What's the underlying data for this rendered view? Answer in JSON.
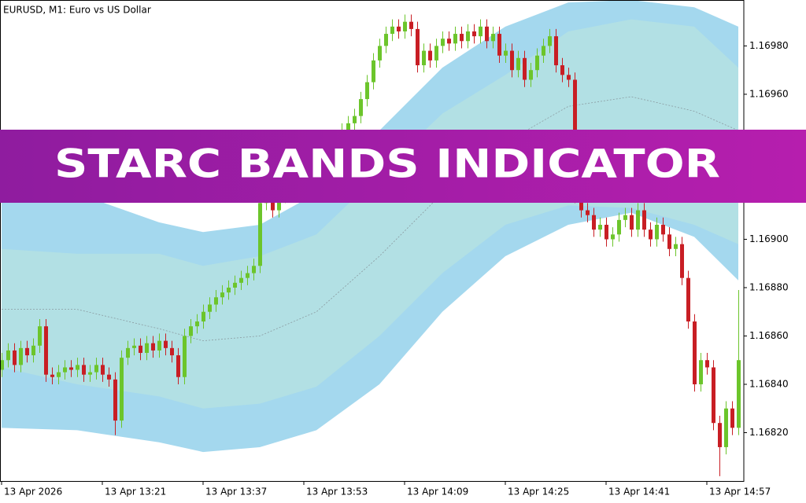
{
  "chart_data": {
    "type": "candlestick",
    "title": "EURUSD, M1:  Euro vs US Dollar",
    "banner": "STARC BANDS INDICATOR",
    "bull_color": "#6cc52b",
    "bear_color": "#c81e24",
    "ylim": [
      1.168,
      1.16999
    ],
    "yticks": [
      {
        "value": 1.1698,
        "label": "1.16980"
      },
      {
        "value": 1.1696,
        "label": "1.16960"
      },
      {
        "value": 1.169,
        "label": "1.16900"
      },
      {
        "value": 1.1688,
        "label": "1.16880"
      },
      {
        "value": 1.1686,
        "label": "1.16860"
      },
      {
        "value": 1.1684,
        "label": "1.16840"
      },
      {
        "value": 1.1682,
        "label": "1.16820"
      }
    ],
    "xlim": [
      -0.25,
      117.875
    ],
    "xticks": [
      {
        "value": 0,
        "label": "13 Apr 2026"
      },
      {
        "value": 16,
        "label": "13 Apr 13:21"
      },
      {
        "value": 32,
        "label": "13 Apr 13:37"
      },
      {
        "value": 48,
        "label": "13 Apr 13:53"
      },
      {
        "value": 64,
        "label": "13 Apr 14:09"
      },
      {
        "value": 80,
        "label": "13 Apr 14:25"
      },
      {
        "value": 96,
        "label": "13 Apr 14:41"
      },
      {
        "value": 112,
        "label": "13 Apr 14:57"
      }
    ],
    "band_x": [
      0,
      12,
      25,
      32,
      41,
      50,
      60,
      70,
      80,
      90,
      100,
      110,
      117
    ],
    "bands": [
      {
        "color": "#a4d8ee",
        "values": [
          1.1692,
          1.16919,
          1.16907,
          1.16903,
          1.16906,
          1.16919,
          1.16945,
          1.16971,
          1.16988,
          1.16998,
          1.16999,
          1.16996,
          1.16988
        ]
      },
      {
        "color": "#b2e0e4",
        "values": [
          1.16896,
          1.16894,
          1.16894,
          1.16889,
          1.16893,
          1.16902,
          1.16927,
          1.16952,
          1.16968,
          1.16986,
          1.16991,
          1.16988,
          1.16971
        ]
      },
      {
        "color": "#8a9aa0",
        "values": [
          1.16871,
          1.16871,
          1.16863,
          1.16858,
          1.1686,
          1.1687,
          1.16893,
          1.16919,
          1.1694,
          1.16955,
          1.16959,
          1.16953,
          1.16945
        ]
      },
      {
        "color": "#b2e0e4",
        "values": [
          1.16847,
          1.1684,
          1.16835,
          1.1683,
          1.16832,
          1.16839,
          1.1686,
          1.16886,
          1.16906,
          1.16914,
          1.16913,
          1.16906,
          1.16898
        ]
      },
      {
        "color": "#a4d8ee",
        "values": [
          1.16822,
          1.16821,
          1.16816,
          1.16812,
          1.16814,
          1.16821,
          1.1684,
          1.1687,
          1.16893,
          1.16906,
          1.16911,
          1.16901,
          1.16883
        ]
      }
    ],
    "candles": [
      [
        1.16846,
        1.16853,
        1.16843,
        1.1685
      ],
      [
        1.1685,
        1.16857,
        1.16847,
        1.16854
      ],
      [
        1.16854,
        1.16857,
        1.16845,
        1.16848
      ],
      [
        1.16848,
        1.16858,
        1.16845,
        1.16855
      ],
      [
        1.16855,
        1.16858,
        1.16849,
        1.16852
      ],
      [
        1.16852,
        1.16859,
        1.16849,
        1.16856
      ],
      [
        1.16856,
        1.16867,
        1.16853,
        1.16864
      ],
      [
        1.16864,
        1.16867,
        1.16841,
        1.16844
      ],
      [
        1.16844,
        1.16847,
        1.1684,
        1.16843
      ],
      [
        1.16843,
        1.16848,
        1.1684,
        1.16845
      ],
      [
        1.16845,
        1.1685,
        1.16842,
        1.16847
      ],
      [
        1.16847,
        1.1685,
        1.16843,
        1.16846
      ],
      [
        1.16846,
        1.16851,
        1.16843,
        1.16848
      ],
      [
        1.16848,
        1.16851,
        1.16841,
        1.16844
      ],
      [
        1.16844,
        1.16848,
        1.16841,
        1.16845
      ],
      [
        1.16845,
        1.16851,
        1.16842,
        1.16848
      ],
      [
        1.16848,
        1.16851,
        1.16841,
        1.16844
      ],
      [
        1.16844,
        1.16847,
        1.16839,
        1.16842
      ],
      [
        1.16842,
        1.16845,
        1.16819,
        1.16825
      ],
      [
        1.16825,
        1.16854,
        1.16822,
        1.16851
      ],
      [
        1.16851,
        1.16858,
        1.16848,
        1.16855
      ],
      [
        1.16855,
        1.16859,
        1.16852,
        1.16856
      ],
      [
        1.16856,
        1.16859,
        1.1685,
        1.16853
      ],
      [
        1.16853,
        1.1686,
        1.1685,
        1.16857
      ],
      [
        1.16857,
        1.1686,
        1.16851,
        1.16854
      ],
      [
        1.16854,
        1.16861,
        1.16851,
        1.16858
      ],
      [
        1.16858,
        1.16861,
        1.16852,
        1.16855
      ],
      [
        1.16855,
        1.16858,
        1.16849,
        1.16852
      ],
      [
        1.16852,
        1.16855,
        1.1684,
        1.16843
      ],
      [
        1.16843,
        1.16863,
        1.1684,
        1.1686
      ],
      [
        1.1686,
        1.16867,
        1.16857,
        1.16864
      ],
      [
        1.16864,
        1.16869,
        1.16861,
        1.16866
      ],
      [
        1.16866,
        1.16873,
        1.16863,
        1.1687
      ],
      [
        1.1687,
        1.16876,
        1.16867,
        1.16873
      ],
      [
        1.16873,
        1.16879,
        1.1687,
        1.16876
      ],
      [
        1.16876,
        1.16881,
        1.16873,
        1.16878
      ],
      [
        1.16878,
        1.16883,
        1.16875,
        1.1688
      ],
      [
        1.1688,
        1.16885,
        1.16877,
        1.16882
      ],
      [
        1.16882,
        1.16887,
        1.16879,
        1.16884
      ],
      [
        1.16884,
        1.16889,
        1.16881,
        1.16886
      ],
      [
        1.16886,
        1.16892,
        1.16883,
        1.16889
      ],
      [
        1.16889,
        1.16918,
        1.16886,
        1.16915
      ],
      [
        1.16915,
        1.16923,
        1.16912,
        1.1692
      ],
      [
        1.1692,
        1.16923,
        1.16909,
        1.16912
      ],
      [
        1.16912,
        1.16921,
        1.16909,
        1.16918
      ],
      [
        1.16918,
        1.16925,
        1.16915,
        1.16922
      ],
      [
        1.16922,
        1.16928,
        1.16919,
        1.16925
      ],
      [
        1.16925,
        1.16931,
        1.16922,
        1.16928
      ],
      [
        1.16928,
        1.16933,
        1.16925,
        1.1693
      ],
      [
        1.1693,
        1.16936,
        1.16927,
        1.16933
      ],
      [
        1.16933,
        1.16939,
        1.1693,
        1.16936
      ],
      [
        1.16936,
        1.16941,
        1.16933,
        1.16938
      ],
      [
        1.16938,
        1.16943,
        1.16935,
        1.1694
      ],
      [
        1.1694,
        1.16945,
        1.16937,
        1.16942
      ],
      [
        1.16942,
        1.16948,
        1.16939,
        1.16945
      ],
      [
        1.16945,
        1.16951,
        1.16942,
        1.16948
      ],
      [
        1.16948,
        1.16954,
        1.16945,
        1.16951
      ],
      [
        1.16951,
        1.16961,
        1.16948,
        1.16958
      ],
      [
        1.16958,
        1.16968,
        1.16955,
        1.16965
      ],
      [
        1.16965,
        1.16977,
        1.16962,
        1.16974
      ],
      [
        1.16974,
        1.16983,
        1.16971,
        1.1698
      ],
      [
        1.1698,
        1.16988,
        1.16977,
        1.16985
      ],
      [
        1.16985,
        1.16991,
        1.16982,
        1.16988
      ],
      [
        1.16988,
        1.16991,
        1.16983,
        1.16986
      ],
      [
        1.16986,
        1.16993,
        1.16983,
        1.1699
      ],
      [
        1.1699,
        1.16993,
        1.16984,
        1.16987
      ],
      [
        1.16987,
        1.1699,
        1.16969,
        1.16972
      ],
      [
        1.16972,
        1.16981,
        1.16969,
        1.16978
      ],
      [
        1.16978,
        1.16981,
        1.16971,
        1.16974
      ],
      [
        1.16974,
        1.16983,
        1.16971,
        1.1698
      ],
      [
        1.1698,
        1.16986,
        1.16977,
        1.16983
      ],
      [
        1.16983,
        1.16986,
        1.16978,
        1.16981
      ],
      [
        1.16981,
        1.16988,
        1.16978,
        1.16985
      ],
      [
        1.16985,
        1.16988,
        1.16979,
        1.16982
      ],
      [
        1.16982,
        1.16989,
        1.16979,
        1.16986
      ],
      [
        1.16986,
        1.16989,
        1.16981,
        1.16984
      ],
      [
        1.16984,
        1.16991,
        1.16981,
        1.16988
      ],
      [
        1.16988,
        1.16991,
        1.16979,
        1.16982
      ],
      [
        1.16982,
        1.16988,
        1.16979,
        1.16985
      ],
      [
        1.16985,
        1.16988,
        1.16973,
        1.16976
      ],
      [
        1.16976,
        1.16981,
        1.16973,
        1.16978
      ],
      [
        1.16978,
        1.16981,
        1.16967,
        1.1697
      ],
      [
        1.1697,
        1.16978,
        1.16967,
        1.16975
      ],
      [
        1.16975,
        1.16978,
        1.16963,
        1.16966
      ],
      [
        1.16966,
        1.16973,
        1.16963,
        1.1697
      ],
      [
        1.1697,
        1.16979,
        1.16967,
        1.16976
      ],
      [
        1.16976,
        1.16983,
        1.16973,
        1.1698
      ],
      [
        1.1698,
        1.16987,
        1.16977,
        1.16984
      ],
      [
        1.16984,
        1.16987,
        1.16969,
        1.16972
      ],
      [
        1.16972,
        1.16975,
        1.16965,
        1.16968
      ],
      [
        1.16968,
        1.16971,
        1.16963,
        1.16966
      ],
      [
        1.16966,
        1.16969,
        1.16915,
        1.16918
      ],
      [
        1.16918,
        1.16921,
        1.16909,
        1.16912
      ],
      [
        1.16912,
        1.16915,
        1.16907,
        1.1691
      ],
      [
        1.1691,
        1.16913,
        1.16901,
        1.16904
      ],
      [
        1.16904,
        1.16909,
        1.16901,
        1.16906
      ],
      [
        1.16906,
        1.16909,
        1.16897,
        1.169
      ],
      [
        1.169,
        1.16905,
        1.16897,
        1.16902
      ],
      [
        1.16902,
        1.16911,
        1.16899,
        1.16908
      ],
      [
        1.16908,
        1.16913,
        1.16905,
        1.1691
      ],
      [
        1.1691,
        1.16913,
        1.16901,
        1.16904
      ],
      [
        1.16904,
        1.16915,
        1.16901,
        1.16912
      ],
      [
        1.16912,
        1.16915,
        1.16901,
        1.16904
      ],
      [
        1.16904,
        1.16907,
        1.16897,
        1.169
      ],
      [
        1.169,
        1.16909,
        1.16897,
        1.16906
      ],
      [
        1.16906,
        1.16909,
        1.16899,
        1.16902
      ],
      [
        1.16902,
        1.16905,
        1.16893,
        1.16896
      ],
      [
        1.16896,
        1.16901,
        1.16893,
        1.16898
      ],
      [
        1.16898,
        1.16901,
        1.16881,
        1.16884
      ],
      [
        1.16884,
        1.16887,
        1.16863,
        1.16866
      ],
      [
        1.16866,
        1.16869,
        1.16837,
        1.1684
      ],
      [
        1.1684,
        1.16853,
        1.16837,
        1.1685
      ],
      [
        1.1685,
        1.16853,
        1.16844,
        1.16847
      ],
      [
        1.16847,
        1.1685,
        1.16821,
        1.16824
      ],
      [
        1.16824,
        1.16827,
        1.16802,
        1.16814
      ],
      [
        1.16814,
        1.16833,
        1.16811,
        1.1683
      ],
      [
        1.1683,
        1.16833,
        1.16819,
        1.16822
      ],
      [
        1.16822,
        1.16879,
        1.16819,
        1.1685
      ]
    ]
  }
}
